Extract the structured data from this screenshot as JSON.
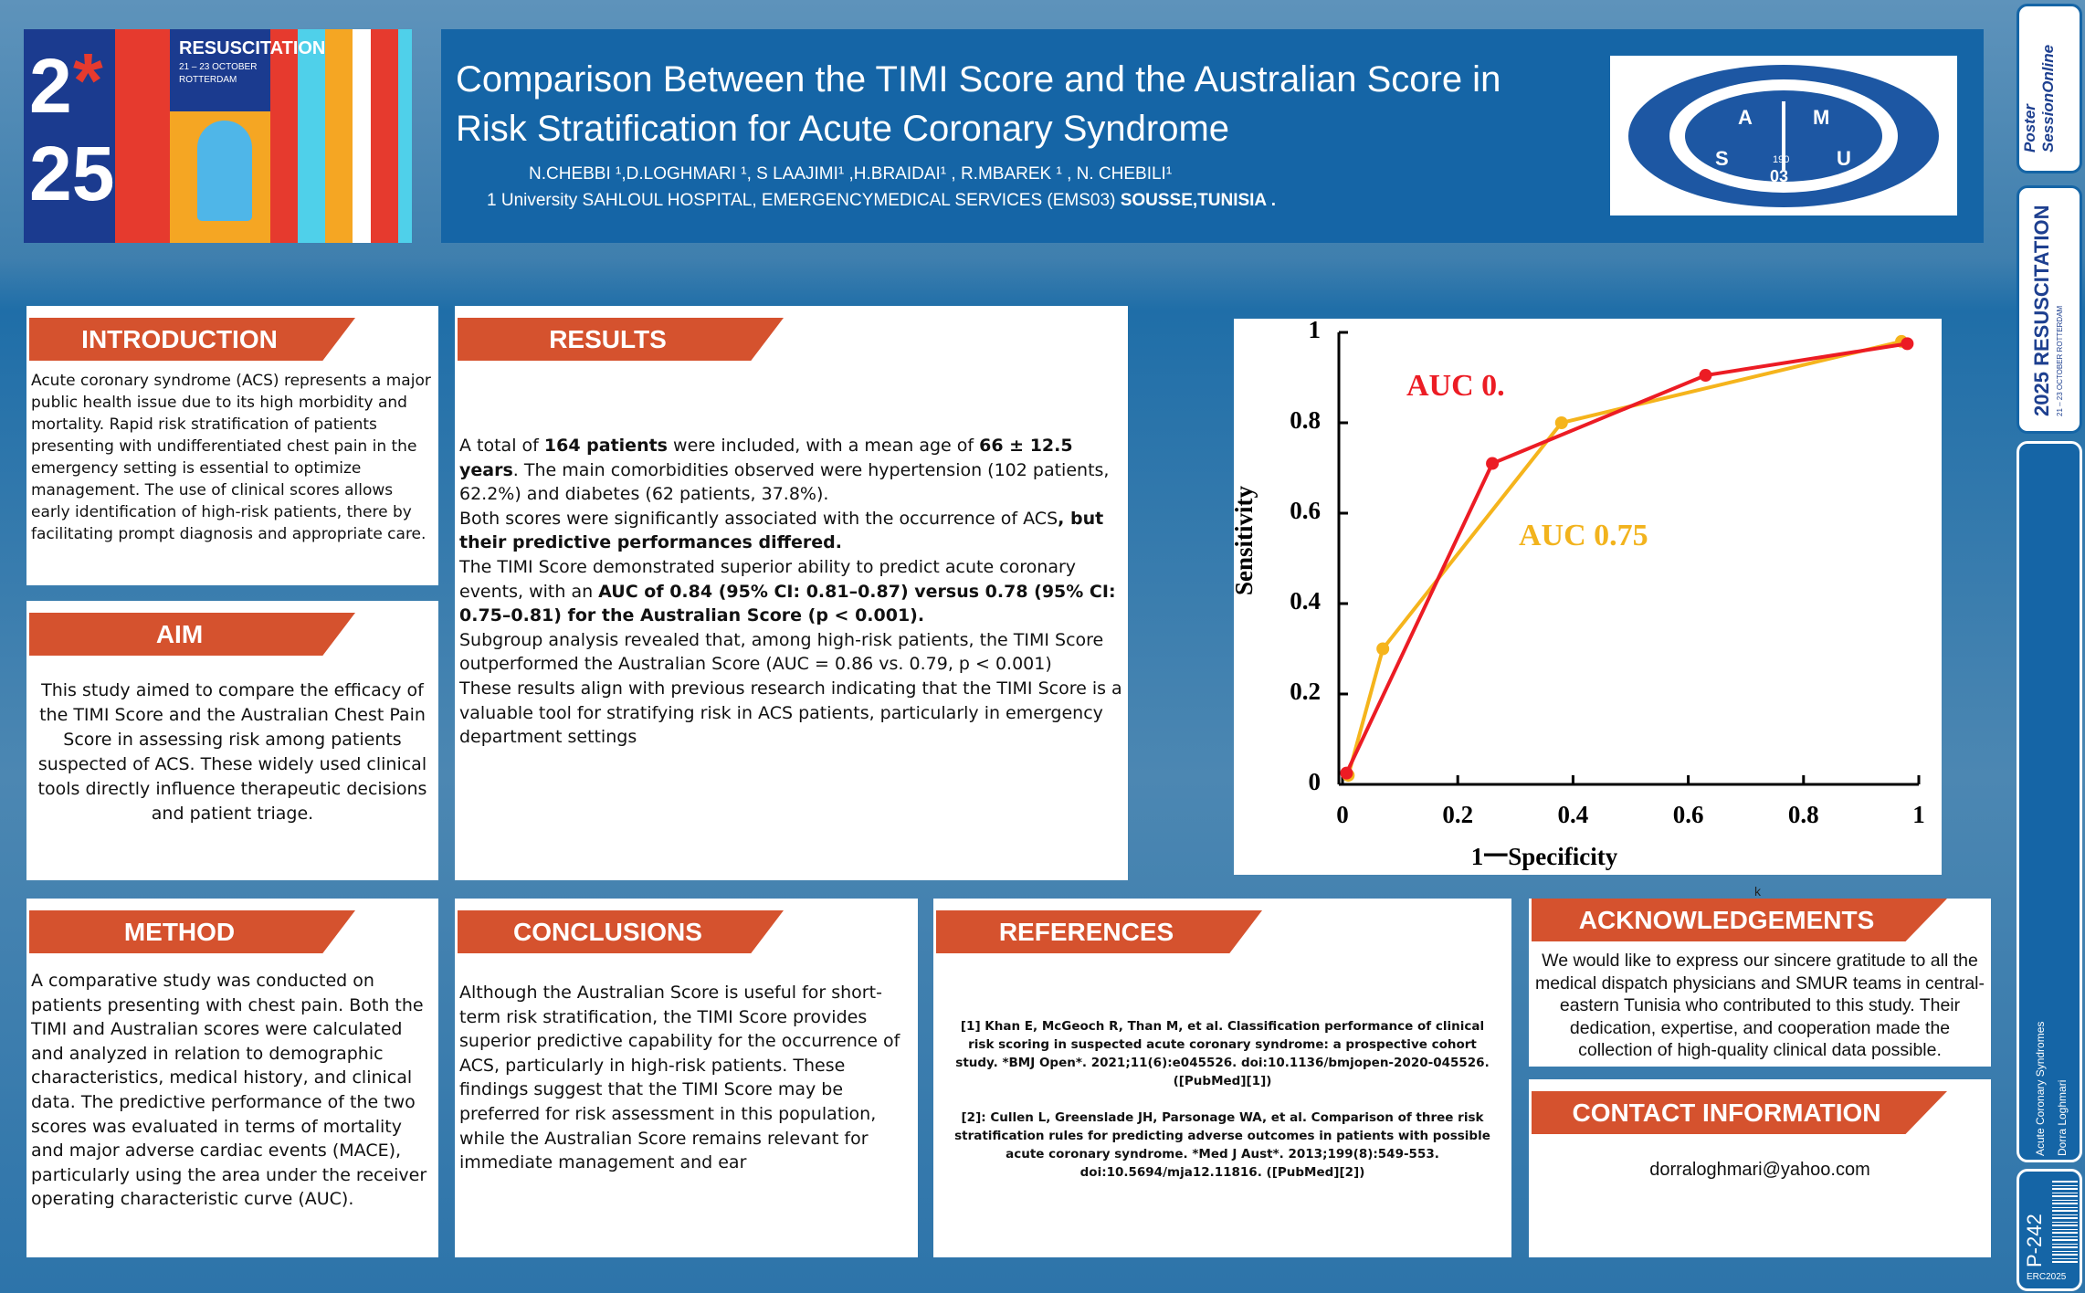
{
  "logo": {
    "big_top": "2",
    "star": "*",
    "big_bottom": "25",
    "event": "RESUSCITATION",
    "dates": "21 – 23 OCTOBER",
    "city": "ROTTERDAM"
  },
  "header": {
    "title": "Comparison Between the TIMI Score and the Australian Score in Risk Stratification for Acute Coronary Syndrome",
    "authors": "N.CHEBBI ¹,D.LOGHMARI ¹, S LAAJIMI¹ ,H.BRAIDAI¹ , R.MBAREK ¹ , N. CHEBILI¹",
    "affiliation": "1 University SAHLOUL HOSPITAL, EMERGENCYMEDICAL SERVICES (EMS03) ",
    "affiliation_bold": "SOUSSE,TUNISIA ."
  },
  "samu_logo": {
    "letters": [
      "A",
      "M",
      "S",
      "U"
    ],
    "year": "190",
    "unit": "03"
  },
  "sidebar": {
    "brand": "Poster SessionOnline",
    "event": "RESUSCITATION",
    "event_year": "2025",
    "event_dates": "21 – 23 OCTOBER ROTTERDAM",
    "topic": "Acute Coronary Syndromes",
    "author": "Dorra Loghmari",
    "poster_id": "P-242",
    "congress": "ERC2025"
  },
  "sections": {
    "introduction": {
      "heading": "INTRODUCTION",
      "text": "Acute coronary syndrome (ACS) represents a major public health issue due to its high morbidity and mortality. Rapid risk stratification of patients presenting with undifferentiated chest pain in the emergency setting is essential to optimize management. The use of clinical scores allows early identification of high-risk patients, there by facilitating prompt diagnosis and appropriate care."
    },
    "aim": {
      "heading": "AIM",
      "text": "This study aimed to compare the efficacy of the TIMI Score and the Australian Chest Pain Score in assessing risk among patients suspected of ACS. These widely used clinical tools directly influence therapeutic decisions and patient triage."
    },
    "results": {
      "heading": "RESULTS",
      "paragraphs": [
        [
          "A total of ",
          "164 patients",
          " were included, with a mean age of ",
          "66 ± 12.5 years",
          ". The main comorbidities observed were hypertension (102 patients, 62.2%) and diabetes (62 patients, 37.8%)."
        ],
        [
          "Both scores were significantly associated with the occurrence of ACS",
          ", but their predictive performances differed."
        ],
        [
          "The TIMI Score demonstrated superior ability to predict acute coronary events, with an ",
          "AUC of 0.84 (95% CI: 0.81–0.87) versus 0.78 (95% CI: 0.75–0.81) for the Australian Score (p < 0.001)."
        ],
        [
          "Subgroup analysis revealed that, among high-risk patients, the TIMI Score outperformed the Australian Score (AUC = 0.86 vs. 0.79, p < 0.001)"
        ],
        [
          "These results align with previous research indicating that the TIMI Score is a valuable tool for stratifying risk in ACS patients, particularly in emergency department settings"
        ]
      ]
    },
    "method": {
      "heading": "METHOD",
      "text": "A comparative study was conducted on patients presenting with chest pain. Both the TIMI and Australian scores were calculated and analyzed in relation to demographic characteristics, medical history, and clinical data. The predictive performance of the two scores was evaluated in terms of mortality and major adverse cardiac events (MACE), particularly using the area under the receiver operating characteristic curve (AUC)."
    },
    "conclusions": {
      "heading": "CONCLUSIONS",
      "text": "Although the Australian Score is useful for short-term risk stratification, the TIMI Score provides superior predictive capability for the occurrence of ACS, particularly in high-risk patients. These findings suggest that the TIMI Score may be preferred for risk assessment in this population, while the Australian Score remains relevant for immediate management and ear"
    },
    "references": {
      "heading": "REFERENCES",
      "items": [
        "[1] Khan E, McGeoch R, Than M, et al. Classification performance of clinical risk scoring in suspected acute coronary syndrome: a prospective cohort study. *BMJ Open*. 2021;11(6):e045526. doi:10.1136/bmjopen-2020-045526. ([PubMed][1])",
        "[2]: Cullen L, Greenslade JH, Parsonage WA, et al. Comparison of three risk stratification rules for predicting adverse outcomes in patients with possible acute coronary syndrome. *Med J Aust*. 2013;199(8):549-553. doi:10.5694/mja12.11816. ([PubMed][2])"
      ]
    },
    "acknowledgements": {
      "heading": "ACKNOWLEDGEMENTS",
      "text": "We would like to express our sincere gratitude to all the medical dispatch physicians and SMUR teams in central-eastern Tunisia who contributed to this study. Their dedication, expertise, and cooperation made the collection of high-quality clinical data possible."
    },
    "contact": {
      "heading": "CONTACT INFORMATION",
      "text": "dorraloghmari@yahoo.com"
    }
  },
  "stray_text": "k",
  "chart_data": {
    "type": "line",
    "x_label": "1一Specificity",
    "y_label": "Sensitivity",
    "xlim": [
      0,
      1
    ],
    "ylim": [
      0,
      1
    ],
    "xticks": [
      0,
      0.2,
      0.4,
      0.6,
      0.8,
      1
    ],
    "yticks": [
      0,
      0.2,
      0.4,
      0.6,
      0.8,
      1
    ],
    "grid": false,
    "series": [
      {
        "color": "#f5b41c",
        "x": [
          0.01,
          0.07,
          0.38,
          0.97
        ],
        "values": [
          0.02,
          0.3,
          0.8,
          0.98
        ]
      },
      {
        "color": "#ec1c24",
        "x": [
          0.007,
          0.26,
          0.63,
          0.98
        ],
        "values": [
          0.025,
          0.71,
          0.905,
          0.975
        ]
      }
    ],
    "annotations": [
      {
        "text": "AUC 0.",
        "color": "#ec1c24"
      },
      {
        "text": "AUC 0.75",
        "color": "#f2b31d"
      }
    ]
  }
}
